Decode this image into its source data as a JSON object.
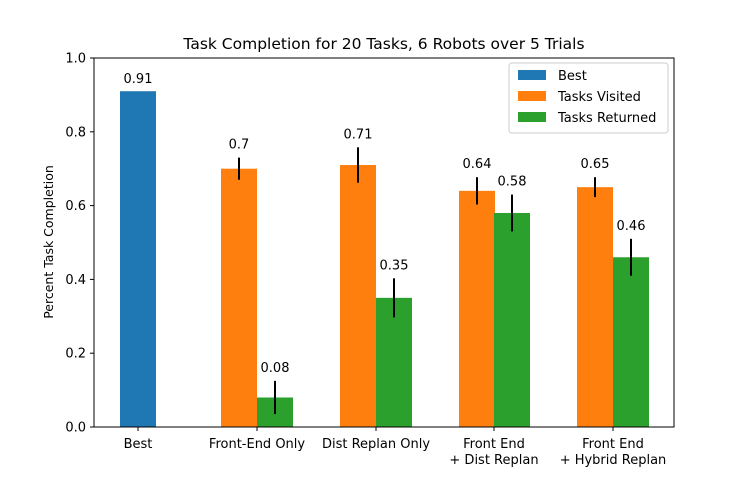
{
  "chart_data": {
    "type": "bar",
    "title": "Task Completion for 20 Tasks, 6 Robots over 5 Trials",
    "xlabel": "",
    "ylabel": "Percent Task Completion",
    "ylim": [
      0,
      1.0
    ],
    "yticks": [
      "0.0",
      "0.2",
      "0.4",
      "0.6",
      "0.8",
      "1.0"
    ],
    "grid": false,
    "legend_position": "top-right",
    "categories": [
      [
        "Best"
      ],
      [
        "Front-End Only"
      ],
      [
        "Dist Replan Only"
      ],
      [
        "Front End",
        "+ Dist Replan"
      ],
      [
        "Front End",
        "+ Hybrid Replan"
      ]
    ],
    "series": [
      {
        "name": "Best",
        "color": "#1f77b4",
        "values": [
          0.91,
          null,
          null,
          null,
          null
        ],
        "labels": [
          "0.91",
          null,
          null,
          null,
          null
        ],
        "errors": [
          null,
          null,
          null,
          null,
          null
        ]
      },
      {
        "name": "Tasks Visited",
        "color": "#ff7f0e",
        "values": [
          null,
          0.7,
          0.71,
          0.64,
          0.65
        ],
        "labels": [
          null,
          "0.7",
          "0.71",
          "0.64",
          "0.65"
        ],
        "errors": [
          null,
          0.03,
          0.048,
          0.037,
          0.027
        ]
      },
      {
        "name": "Tasks Returned",
        "color": "#2ca02c",
        "values": [
          null,
          0.08,
          0.35,
          0.58,
          0.46
        ],
        "labels": [
          null,
          "0.08",
          "0.35",
          "0.58",
          "0.46"
        ],
        "errors": [
          null,
          0.045,
          0.053,
          0.05,
          0.05
        ]
      }
    ]
  }
}
